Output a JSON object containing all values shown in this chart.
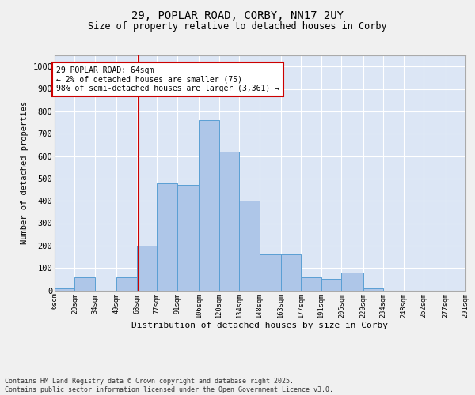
{
  "title1": "29, POPLAR ROAD, CORBY, NN17 2UY",
  "title2": "Size of property relative to detached houses in Corby",
  "xlabel": "Distribution of detached houses by size in Corby",
  "ylabel": "Number of detached properties",
  "annotation_text": "29 POPLAR ROAD: 64sqm\n← 2% of detached houses are smaller (75)\n98% of semi-detached houses are larger (3,361) →",
  "property_size": 64,
  "bin_edges": [
    6,
    20,
    34,
    49,
    63,
    77,
    91,
    106,
    120,
    134,
    148,
    163,
    177,
    191,
    205,
    220,
    234,
    248,
    262,
    277,
    291
  ],
  "bar_heights": [
    10,
    60,
    0,
    60,
    200,
    480,
    470,
    760,
    620,
    400,
    160,
    160,
    60,
    50,
    80,
    10,
    0,
    0,
    0,
    0
  ],
  "bar_color": "#aec6e8",
  "bar_edge_color": "#5a9fd4",
  "vline_color": "#cc0000",
  "annotation_box_color": "#cc0000",
  "background_color": "#dce6f5",
  "grid_color": "#ffffff",
  "fig_bg_color": "#f0f0f0",
  "footer_text": "Contains HM Land Registry data © Crown copyright and database right 2025.\nContains public sector information licensed under the Open Government Licence v3.0.",
  "ylim": [
    0,
    1050
  ],
  "yticks": [
    0,
    100,
    200,
    300,
    400,
    500,
    600,
    700,
    800,
    900,
    1000
  ]
}
